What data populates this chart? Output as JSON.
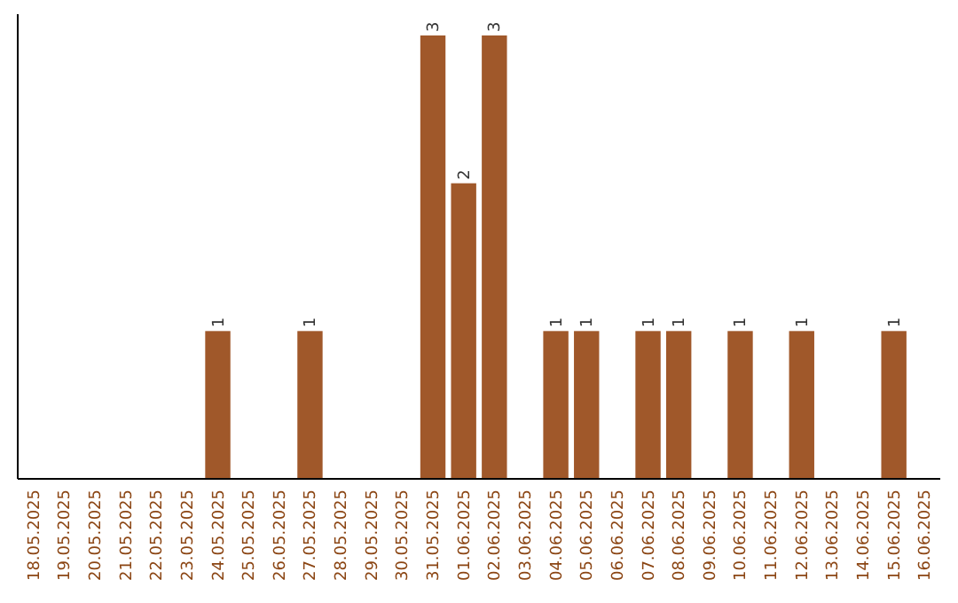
{
  "chart_data": {
    "type": "bar",
    "categories": [
      "18.05.2025",
      "19.05.2025",
      "20.05.2025",
      "21.05.2025",
      "22.05.2025",
      "23.05.2025",
      "24.05.2025",
      "25.05.2025",
      "26.05.2025",
      "27.05.2025",
      "28.05.2025",
      "29.05.2025",
      "30.05.2025",
      "31.05.2025",
      "01.06.2025",
      "02.06.2025",
      "03.06.2025",
      "04.06.2025",
      "05.06.2025",
      "06.06.2025",
      "07.06.2025",
      "08.06.2025",
      "09.06.2025",
      "10.06.2025",
      "11.06.2025",
      "12.06.2025",
      "13.06.2025",
      "14.06.2025",
      "15.06.2025",
      "16.06.2025"
    ],
    "values": [
      0,
      0,
      0,
      0,
      0,
      0,
      1,
      0,
      0,
      1,
      0,
      0,
      0,
      3,
      2,
      3,
      0,
      1,
      1,
      0,
      1,
      1,
      0,
      1,
      0,
      1,
      0,
      0,
      1,
      0
    ],
    "value_labels": [
      null,
      null,
      null,
      null,
      null,
      null,
      "1",
      null,
      null,
      "1",
      null,
      null,
      null,
      "3",
      "2",
      "3",
      null,
      "1",
      "1",
      null,
      "1",
      "1",
      null,
      "1",
      null,
      "1",
      null,
      null,
      "1",
      null
    ],
    "color": "#a0582a"
  }
}
